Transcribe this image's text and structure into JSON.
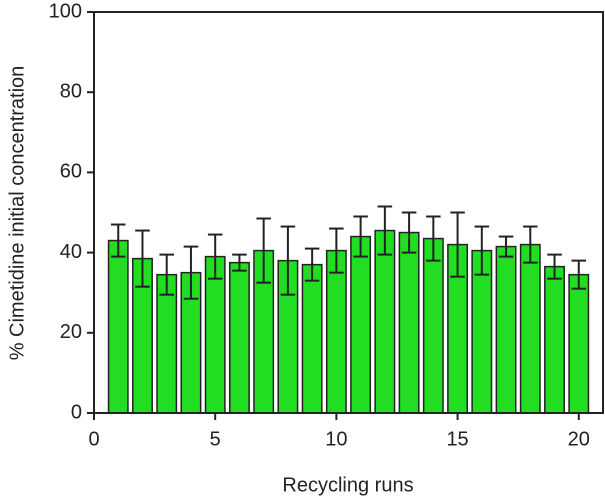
{
  "chart_data": {
    "type": "bar",
    "xlabel": "Recycling runs",
    "ylabel": "% Cimetidine initial concentration",
    "x": [
      1,
      2,
      3,
      4,
      5,
      6,
      7,
      8,
      9,
      10,
      11,
      12,
      13,
      14,
      15,
      16,
      17,
      18,
      19,
      20
    ],
    "values": [
      43,
      38.5,
      34.5,
      35,
      39,
      37.5,
      40.5,
      38,
      37,
      40.5,
      44,
      45.5,
      45,
      43.5,
      42,
      40.5,
      41.5,
      42,
      36.5,
      34.5
    ],
    "errors": [
      4,
      7,
      5,
      6.5,
      5.5,
      2,
      8,
      8.5,
      4,
      5.5,
      5,
      6,
      5,
      5.5,
      8,
      6,
      2.5,
      4.5,
      3,
      3.5
    ],
    "color": "#22dd22",
    "xlim": [
      0,
      21
    ],
    "xticks": [
      0,
      5,
      10,
      15,
      20
    ],
    "ylim": [
      0,
      100
    ],
    "yticks": [
      0,
      20,
      40,
      60,
      80,
      100
    ]
  }
}
